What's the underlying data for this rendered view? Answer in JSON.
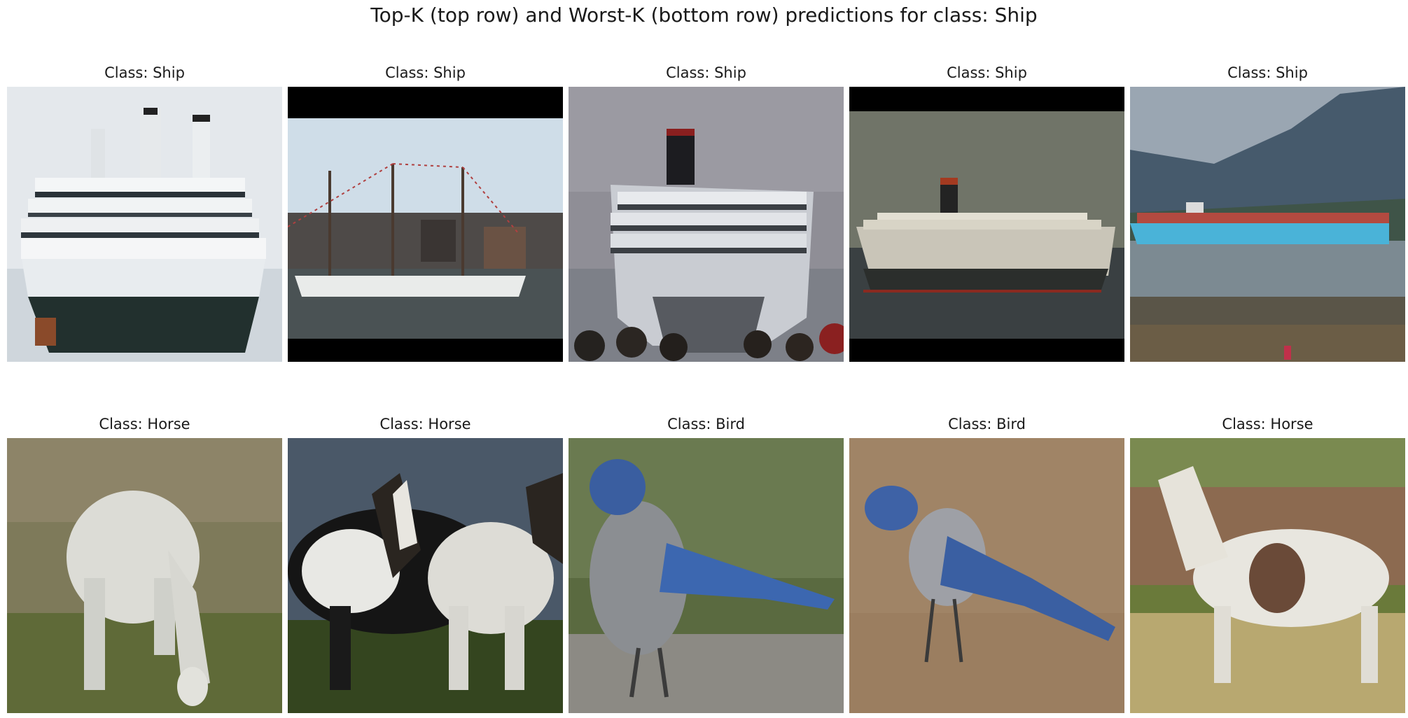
{
  "suptitle": "Top-K (top row) and Worst-K (bottom row) predictions for class: Ship",
  "top_row": [
    {
      "title": "Class: Ship",
      "content": "cruise-ship-front"
    },
    {
      "title": "Class: Ship",
      "content": "tall-ship-harbor"
    },
    {
      "title": "Class: Ship",
      "content": "cruise-ship-bow-crowd"
    },
    {
      "title": "Class: Ship",
      "content": "liner-side-view"
    },
    {
      "title": "Class: Ship",
      "content": "container-ship-mountains"
    }
  ],
  "bottom_row": [
    {
      "title": "Class: Horse",
      "content": "white-horse-grazing"
    },
    {
      "title": "Class: Horse",
      "content": "pinto-horses"
    },
    {
      "title": "Class: Bird",
      "content": "blue-jay-rock"
    },
    {
      "title": "Class: Bird",
      "content": "blue-jay-ground"
    },
    {
      "title": "Class: Horse",
      "content": "pinto-horse-running"
    }
  ]
}
